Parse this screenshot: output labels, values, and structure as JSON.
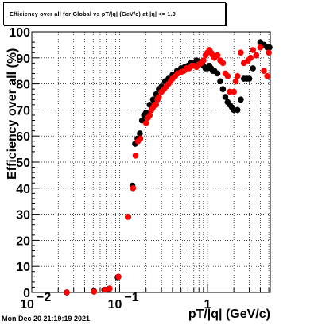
{
  "chart_data": {
    "type": "scatter",
    "title": "Efficiency over all for Global vs pT/|q| (GeV/c) at |η| <= 1.0",
    "xlabel": "pT/|q| (GeV/c)",
    "ylabel": "Efficiency over all (%)",
    "xscale": "log",
    "xlim": [
      0.01,
      5.2
    ],
    "ylim": [
      0,
      100
    ],
    "grid": true,
    "x_tick_labels": [
      {
        "base": "10",
        "exp": "−2",
        "value": 0.01
      },
      {
        "base": "10",
        "exp": "−1",
        "value": 0.1
      },
      {
        "text": "1",
        "value": 1
      }
    ],
    "y_tick_labels": [
      "0",
      "10",
      "20",
      "30",
      "40",
      "50",
      "60",
      "70",
      "80",
      "90",
      "100"
    ],
    "series": [
      {
        "color": "#000000",
        "x": [
          0.025,
          0.051,
          0.067,
          0.075,
          0.095,
          0.125,
          0.14,
          0.15,
          0.16,
          0.17,
          0.18,
          0.19,
          0.2,
          0.22,
          0.24,
          0.26,
          0.28,
          0.3,
          0.33,
          0.36,
          0.4,
          0.45,
          0.5,
          0.55,
          0.6,
          0.65,
          0.7,
          0.75,
          0.8,
          0.85,
          0.9,
          0.95,
          1.0,
          1.05,
          1.1,
          1.15,
          1.2,
          1.3,
          1.4,
          1.5,
          1.6,
          1.7,
          1.8,
          1.9,
          2.0,
          2.2,
          2.4,
          2.6,
          2.8,
          3.0,
          3.3,
          3.6,
          4.0,
          4.4,
          4.8,
          5.1
        ],
        "y": [
          0,
          0.5,
          1,
          1.3,
          5.8,
          29,
          41,
          57,
          59,
          61,
          66,
          68,
          69,
          72,
          74,
          76,
          78,
          79,
          81,
          82,
          83.5,
          85,
          86,
          86.5,
          87,
          88,
          88,
          89,
          88.5,
          88,
          87,
          86,
          86,
          87,
          86,
          85,
          85,
          84,
          81,
          78,
          75,
          73,
          72,
          71,
          70,
          70,
          74,
          82,
          82,
          82,
          86,
          91,
          96,
          95,
          94,
          94
        ]
      },
      {
        "color": "#ff0000",
        "x": [
          0.025,
          0.051,
          0.068,
          0.077,
          0.097,
          0.124,
          0.142,
          0.152,
          0.162,
          0.172,
          0.2,
          0.21,
          0.22,
          0.23,
          0.24,
          0.25,
          0.26,
          0.27,
          0.28,
          0.3,
          0.32,
          0.34,
          0.36,
          0.38,
          0.4,
          0.43,
          0.46,
          0.5,
          0.54,
          0.58,
          0.62,
          0.66,
          0.7,
          0.75,
          0.8,
          0.85,
          0.9,
          0.95,
          1.0,
          1.05,
          1.1,
          1.15,
          1.2,
          1.3,
          1.4,
          1.5,
          1.6,
          1.7,
          1.8,
          2.0,
          2.1,
          2.2,
          2.4,
          2.6,
          2.9,
          3.1,
          3.3,
          3.6,
          4.0,
          4.4,
          4.8,
          5.0
        ],
        "y": [
          0,
          0.3,
          1,
          1.5,
          6,
          29,
          40,
          52.5,
          58,
          59,
          65,
          67,
          68,
          70,
          71,
          72,
          72,
          74,
          75,
          77,
          78,
          79,
          80,
          81,
          82,
          83,
          84,
          84.5,
          85,
          86,
          86,
          87,
          87,
          86.5,
          87.5,
          88,
          89,
          91,
          92,
          93,
          92,
          91,
          90,
          91,
          89,
          88,
          84,
          83,
          77,
          77,
          81,
          83,
          92,
          88,
          89,
          90,
          93,
          91,
          94,
          85,
          83,
          92
        ]
      }
    ]
  },
  "timestamp": "Mon Dec 20 21:19:19 2021"
}
